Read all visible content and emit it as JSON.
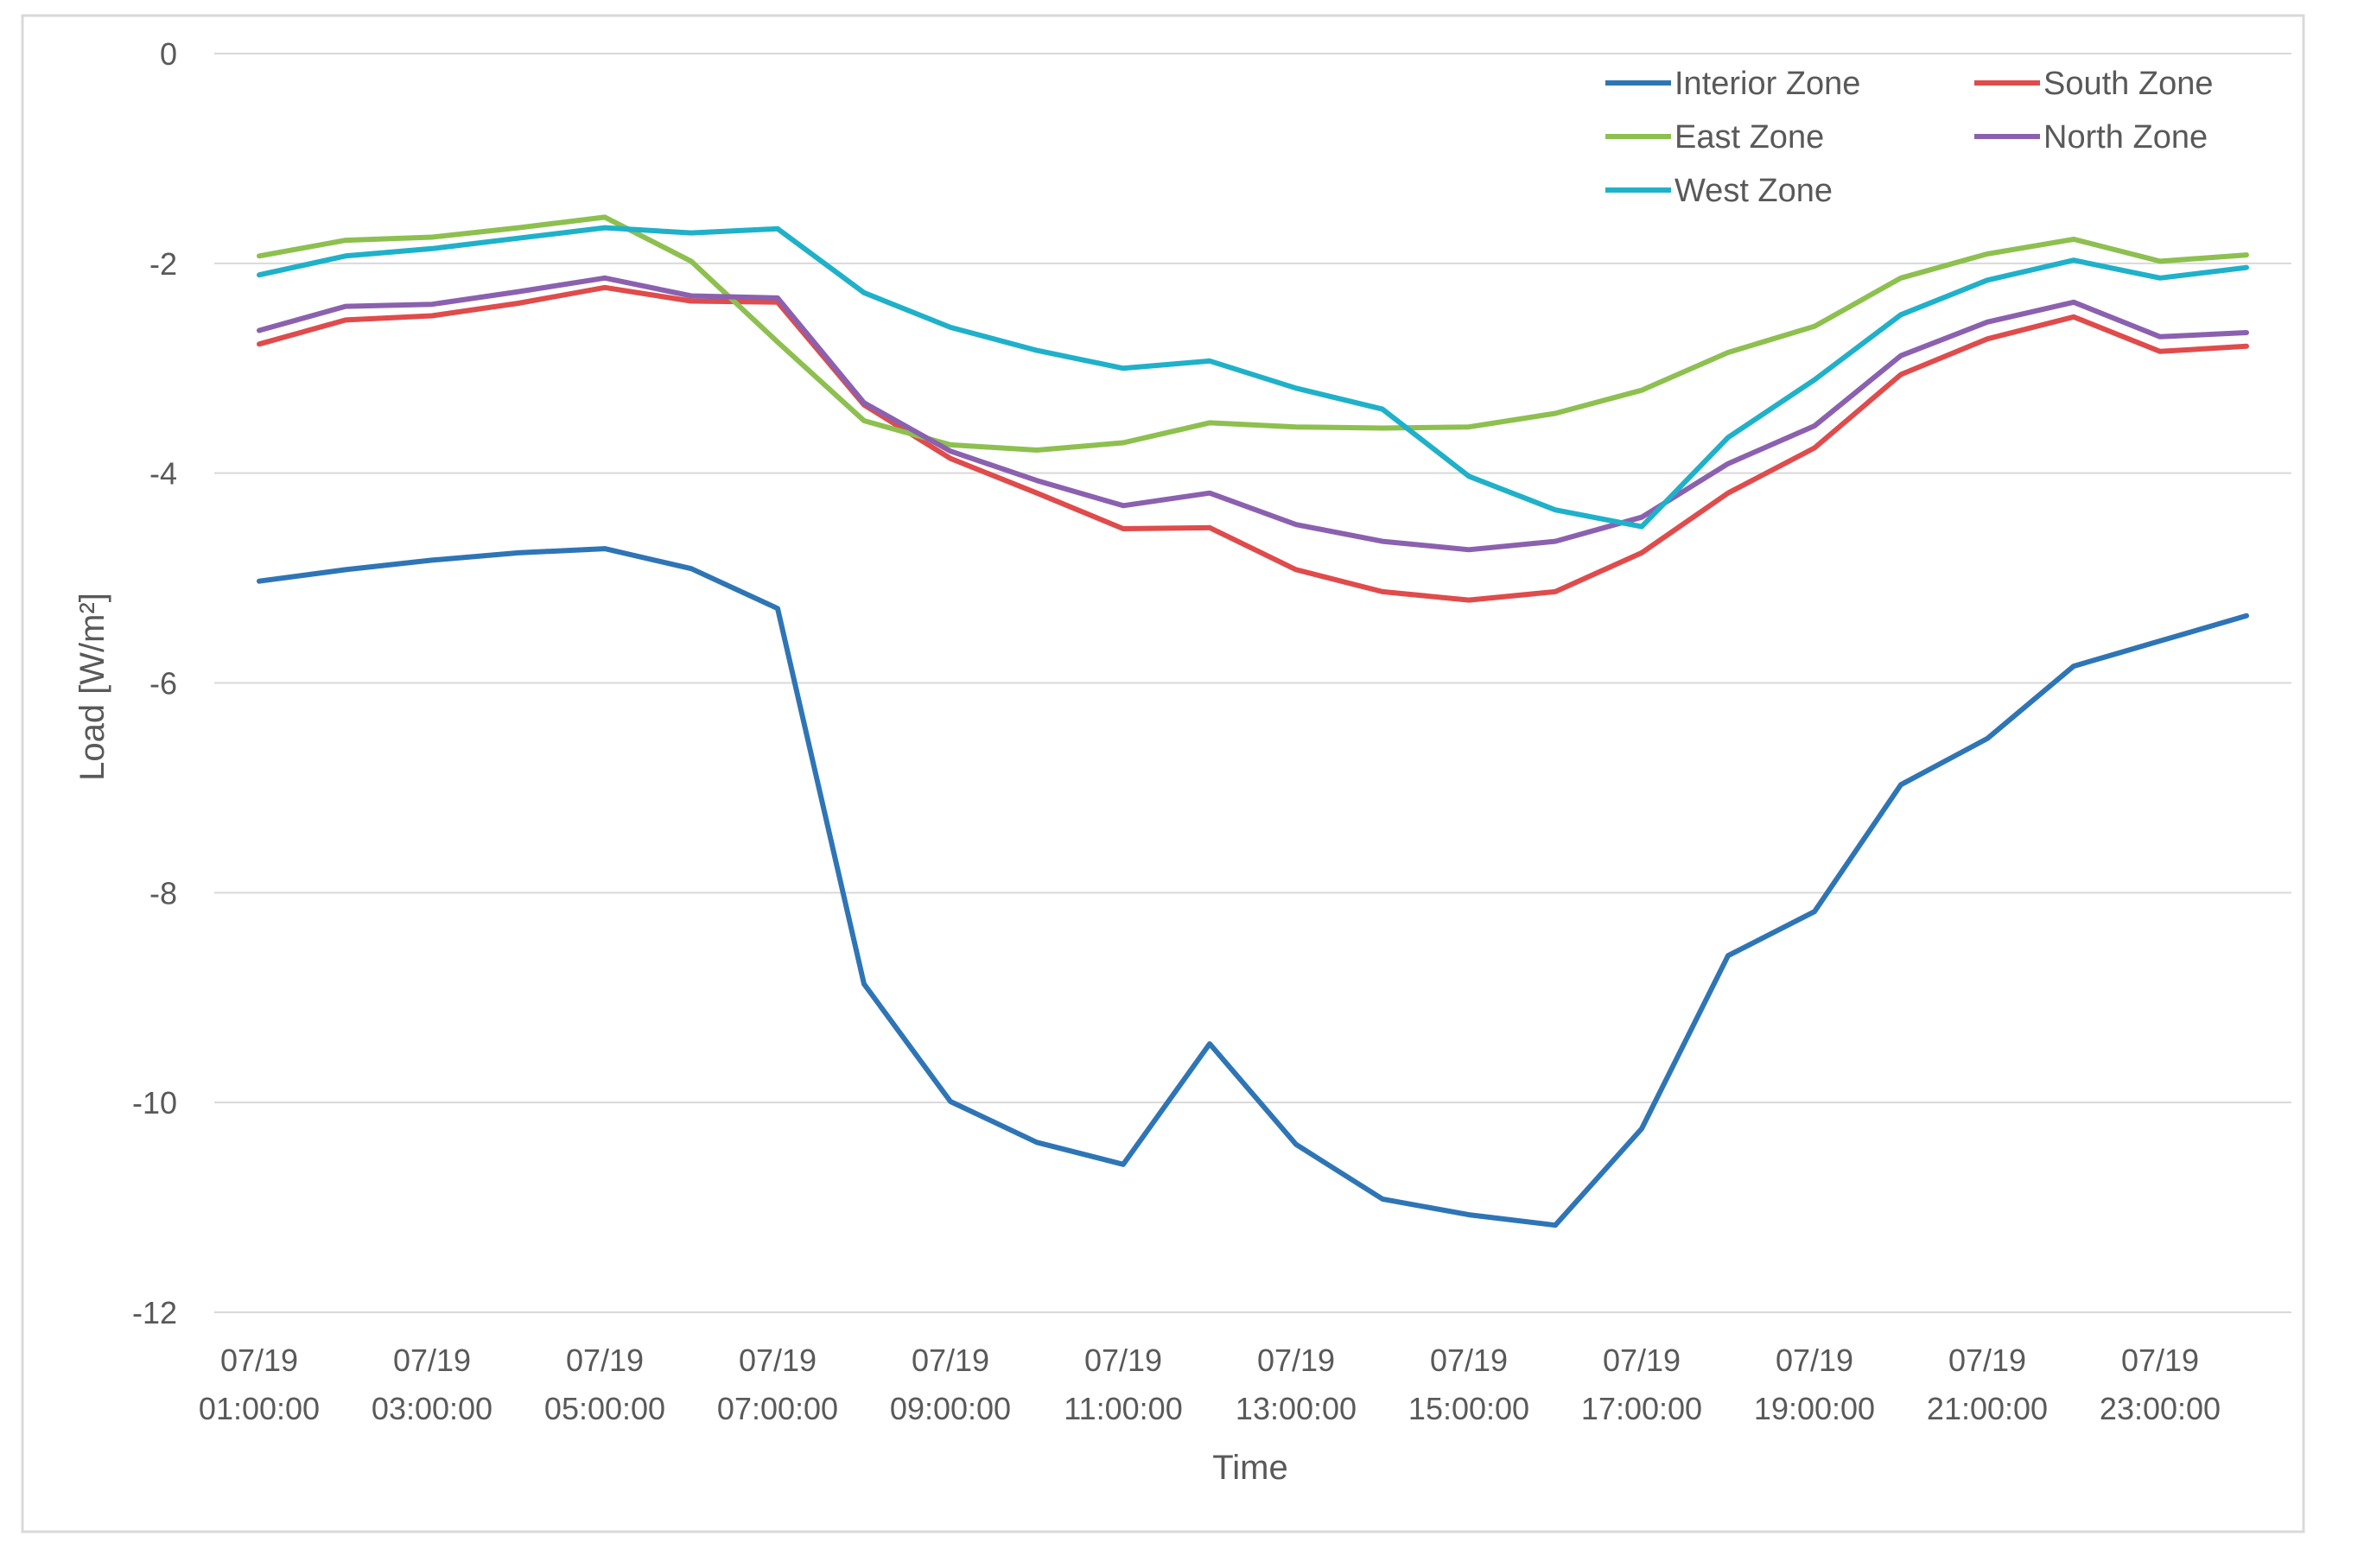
{
  "chart_data": {
    "type": "line",
    "title": "",
    "xlabel": "Time",
    "ylabel": "Load [W/m²]",
    "ylim": [
      -12,
      0
    ],
    "yticks": [
      "0",
      "-2",
      "-4",
      "-6",
      "-8",
      "-10",
      "-12"
    ],
    "ytick_values": [
      0,
      -2,
      -4,
      -6,
      -8,
      -10,
      -12
    ],
    "grid": true,
    "legend_position": "top-right",
    "x": [
      "01:00:00",
      "02:00:00",
      "03:00:00",
      "04:00:00",
      "05:00:00",
      "06:00:00",
      "07:00:00",
      "08:00:00",
      "09:00:00",
      "10:00:00",
      "11:00:00",
      "12:00:00",
      "13:00:00",
      "14:00:00",
      "15:00:00",
      "16:00:00",
      "17:00:00",
      "18:00:00",
      "19:00:00",
      "20:00:00",
      "21:00:00",
      "22:00:00",
      "23:00:00",
      "24:00:00"
    ],
    "xtick_labels": [
      {
        "date": "07/19",
        "time": "01:00:00"
      },
      {
        "date": "07/19",
        "time": "03:00:00"
      },
      {
        "date": "07/19",
        "time": "05:00:00"
      },
      {
        "date": "07/19",
        "time": "07:00:00"
      },
      {
        "date": "07/19",
        "time": "09:00:00"
      },
      {
        "date": "07/19",
        "time": "11:00:00"
      },
      {
        "date": "07/19",
        "time": "13:00:00"
      },
      {
        "date": "07/19",
        "time": "15:00:00"
      },
      {
        "date": "07/19",
        "time": "17:00:00"
      },
      {
        "date": "07/19",
        "time": "19:00:00"
      },
      {
        "date": "07/19",
        "time": "21:00:00"
      },
      {
        "date": "07/19",
        "time": "23:00:00"
      }
    ],
    "series": [
      {
        "name": "Interior Zone",
        "color": "#2E75B6",
        "values": [
          -5.03,
          -4.92,
          -4.83,
          -4.76,
          -4.72,
          -4.91,
          -5.29,
          -8.87,
          -9.99,
          -10.38,
          -10.59,
          -9.44,
          -10.4,
          -10.92,
          -11.07,
          -11.17,
          -10.25,
          -8.6,
          -8.18,
          -6.97,
          -6.53,
          -5.84,
          -5.6,
          -5.36
        ]
      },
      {
        "name": "South Zone",
        "color": "#E04B4B",
        "values": [
          -2.77,
          -2.54,
          -2.5,
          -2.38,
          -2.23,
          -2.36,
          -2.37,
          -3.35,
          -3.86,
          -4.19,
          -4.53,
          -4.52,
          -4.92,
          -5.13,
          -5.21,
          -5.13,
          -4.76,
          -4.19,
          -3.76,
          -3.06,
          -2.72,
          -2.51,
          -2.84,
          -2.79
        ]
      },
      {
        "name": "East Zone",
        "color": "#8DC04F",
        "values": [
          -1.93,
          -1.78,
          -1.75,
          -1.66,
          -1.56,
          -1.98,
          -2.75,
          -3.5,
          -3.73,
          -3.78,
          -3.71,
          -3.52,
          -3.56,
          -3.57,
          -3.56,
          -3.43,
          -3.21,
          -2.85,
          -2.6,
          -2.14,
          -1.91,
          -1.77,
          -1.98,
          -1.92
        ]
      },
      {
        "name": "North Zone",
        "color": "#8B61AF",
        "values": [
          -2.64,
          -2.41,
          -2.39,
          -2.27,
          -2.14,
          -2.31,
          -2.33,
          -3.33,
          -3.79,
          -4.07,
          -4.31,
          -4.19,
          -4.49,
          -4.65,
          -4.73,
          -4.65,
          -4.42,
          -3.91,
          -3.55,
          -2.88,
          -2.56,
          -2.37,
          -2.7,
          -2.66
        ]
      },
      {
        "name": "West Zone",
        "color": "#1FB1C9",
        "values": [
          -2.11,
          -1.93,
          -1.86,
          -1.76,
          -1.66,
          -1.71,
          -1.67,
          -2.28,
          -2.61,
          -2.83,
          -3.0,
          -2.93,
          -3.19,
          -3.39,
          -4.03,
          -4.35,
          -4.51,
          -3.66,
          -3.11,
          -2.49,
          -2.16,
          -1.97,
          -2.14,
          -2.04
        ]
      }
    ]
  }
}
